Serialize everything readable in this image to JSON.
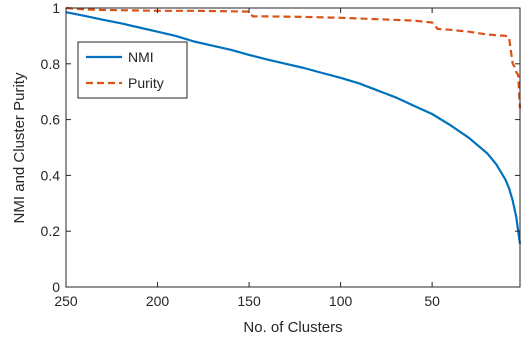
{
  "chart_data": {
    "type": "line",
    "title": "",
    "xlabel": "No. of Clusters",
    "ylabel": "NMI and Cluster Purity",
    "xlim": [
      250,
      2
    ],
    "ylim": [
      0,
      1
    ],
    "x_reversed": true,
    "xticks": [
      250,
      200,
      150,
      100,
      50
    ],
    "xtick_labels": [
      "250",
      "200",
      "150",
      "100",
      "50"
    ],
    "yticks": [
      0,
      0.2,
      0.4,
      0.6,
      0.8,
      1
    ],
    "ytick_labels": [
      "0",
      "0.2",
      "0.4",
      "0.6",
      "0.8",
      "1"
    ],
    "grid": false,
    "legend_position": "upper-left",
    "series": [
      {
        "name": "NMI",
        "color": "#0072BD",
        "style": "solid",
        "points": [
          [
            250,
            0.985
          ],
          [
            240,
            0.972
          ],
          [
            230,
            0.958
          ],
          [
            220,
            0.945
          ],
          [
            210,
            0.93
          ],
          [
            200,
            0.915
          ],
          [
            190,
            0.9
          ],
          [
            180,
            0.88
          ],
          [
            170,
            0.865
          ],
          [
            160,
            0.85
          ],
          [
            150,
            0.832
          ],
          [
            140,
            0.815
          ],
          [
            130,
            0.8
          ],
          [
            120,
            0.785
          ],
          [
            110,
            0.767
          ],
          [
            100,
            0.75
          ],
          [
            90,
            0.73
          ],
          [
            80,
            0.705
          ],
          [
            70,
            0.68
          ],
          [
            60,
            0.65
          ],
          [
            50,
            0.62
          ],
          [
            40,
            0.58
          ],
          [
            30,
            0.535
          ],
          [
            20,
            0.48
          ],
          [
            15,
            0.44
          ],
          [
            10,
            0.385
          ],
          [
            8,
            0.355
          ],
          [
            6,
            0.31
          ],
          [
            4,
            0.25
          ],
          [
            3,
            0.2
          ],
          [
            2,
            0.155
          ]
        ]
      },
      {
        "name": "Purity",
        "color": "#D95319",
        "style": "dashed",
        "points": [
          [
            250,
            1.0
          ],
          [
            240,
            0.995
          ],
          [
            230,
            0.993
          ],
          [
            220,
            0.992
          ],
          [
            200,
            0.99
          ],
          [
            180,
            0.99
          ],
          [
            160,
            0.988
          ],
          [
            150,
            0.987
          ],
          [
            148,
            0.97
          ],
          [
            140,
            0.97
          ],
          [
            120,
            0.968
          ],
          [
            100,
            0.965
          ],
          [
            80,
            0.96
          ],
          [
            60,
            0.955
          ],
          [
            50,
            0.948
          ],
          [
            47,
            0.925
          ],
          [
            40,
            0.922
          ],
          [
            30,
            0.915
          ],
          [
            20,
            0.905
          ],
          [
            10,
            0.9
          ],
          [
            8,
            0.895
          ],
          [
            6,
            0.8
          ],
          [
            5,
            0.79
          ],
          [
            4,
            0.77
          ],
          [
            3,
            0.76
          ],
          [
            2,
            0.64
          ]
        ]
      }
    ]
  }
}
